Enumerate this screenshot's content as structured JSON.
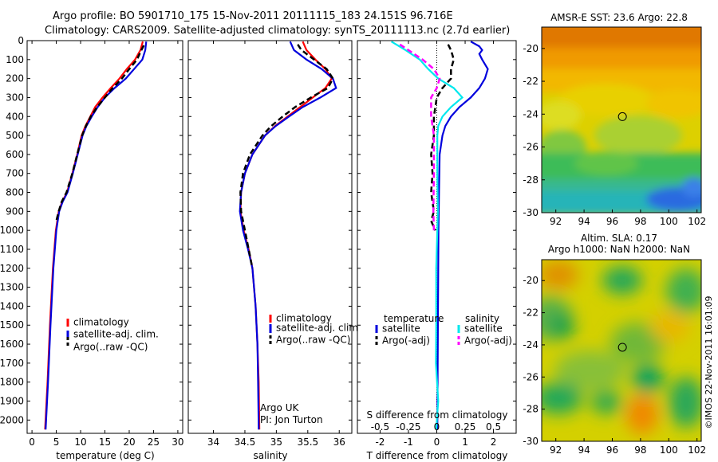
{
  "header": {
    "line1": "Argo profile: BO 5901710_175 15-Nov-2011 20111115_183 24.151S 96.716E",
    "line2": "Climatology: CARS2009. Satellite-adjusted climatology: synTS_20111113.nc (2.7d earlier)"
  },
  "colors": {
    "climatology": "#ff0000",
    "satellite": "#0000dd",
    "argo": "#000000",
    "sat_salinity": "#00e8ee",
    "argo_salinity": "#ff00ff"
  },
  "chart_data": [
    {
      "type": "line",
      "name": "temperature-profile",
      "xlabel": "temperature (deg C)",
      "ylabel": "",
      "xlim": [
        -1,
        31
      ],
      "ylim": [
        2070,
        0
      ],
      "xticks": [
        0,
        5,
        10,
        15,
        20,
        25,
        30
      ],
      "yticks": [
        0,
        100,
        200,
        300,
        400,
        500,
        600,
        700,
        800,
        900,
        1000,
        1100,
        1200,
        1300,
        1400,
        1500,
        1600,
        1700,
        1800,
        1900,
        2000
      ],
      "legend": [
        "climatology",
        "satellite-adj. clim.",
        "Argo(..raw -QC)"
      ],
      "series": [
        {
          "name": "climatology",
          "color": "#ff0000",
          "points": [
            [
              22.8,
              5
            ],
            [
              22.3,
              50
            ],
            [
              21.2,
              100
            ],
            [
              19.5,
              150
            ],
            [
              18,
              200
            ],
            [
              16.2,
              250
            ],
            [
              14.5,
              300
            ],
            [
              13,
              350
            ],
            [
              12,
              400
            ],
            [
              11,
              450
            ],
            [
              10.2,
              500
            ],
            [
              9.3,
              600
            ],
            [
              8.3,
              700
            ],
            [
              7.2,
              800
            ],
            [
              6.2,
              850
            ],
            [
              5.5,
              900
            ],
            [
              4.9,
              1000
            ],
            [
              4.3,
              1200
            ],
            [
              3.7,
              1500
            ],
            [
              3.2,
              1800
            ],
            [
              2.7,
              2050
            ]
          ]
        },
        {
          "name": "satellite-adj. clim.",
          "color": "#0000dd",
          "points": [
            [
              23.5,
              5
            ],
            [
              23.3,
              50
            ],
            [
              22.7,
              100
            ],
            [
              21,
              150
            ],
            [
              19.3,
              200
            ],
            [
              17,
              250
            ],
            [
              15,
              300
            ],
            [
              13.5,
              350
            ],
            [
              12.3,
              400
            ],
            [
              11.2,
              450
            ],
            [
              10.4,
              500
            ],
            [
              9.4,
              600
            ],
            [
              8.4,
              700
            ],
            [
              7.3,
              800
            ],
            [
              6.3,
              850
            ],
            [
              5.6,
              900
            ],
            [
              5,
              1000
            ],
            [
              4.4,
              1200
            ],
            [
              3.8,
              1500
            ],
            [
              3.3,
              1800
            ],
            [
              2.8,
              2050
            ]
          ]
        },
        {
          "name": "Argo(..raw -QC)",
          "color": "#000000",
          "dashed": true,
          "points": [
            [
              23,
              25
            ],
            [
              22.5,
              50
            ],
            [
              21.6,
              100
            ],
            [
              20,
              150
            ],
            [
              18.5,
              200
            ],
            [
              16.6,
              250
            ],
            [
              15,
              300
            ],
            [
              13.4,
              350
            ],
            [
              12.1,
              400
            ],
            [
              11.1,
              450
            ],
            [
              10.3,
              500
            ],
            [
              9.3,
              600
            ],
            [
              8.3,
              700
            ],
            [
              7.1,
              800
            ],
            [
              6.1,
              850
            ],
            [
              5.5,
              900
            ],
            [
              5,
              950
            ]
          ]
        }
      ]
    },
    {
      "type": "line",
      "name": "salinity-profile",
      "xlabel": "salinity",
      "ylabel": "",
      "xlim": [
        33.6,
        36.2
      ],
      "ylim": [
        2070,
        0
      ],
      "xticks": [
        34,
        34.5,
        35,
        35.5,
        36
      ],
      "xticklabels": [
        "34",
        "34.5",
        "35",
        "35.5",
        "36"
      ],
      "legend": [
        "climatology",
        "satellite-adj. clim.",
        "Argo(..raw -QC)"
      ],
      "annotations": [
        "Argo UK",
        "PI: Jon Turton"
      ],
      "series": [
        {
          "name": "climatology",
          "color": "#ff0000",
          "points": [
            [
              35.42,
              5
            ],
            [
              35.48,
              50
            ],
            [
              35.62,
              100
            ],
            [
              35.78,
              150
            ],
            [
              35.88,
              200
            ],
            [
              35.78,
              250
            ],
            [
              35.58,
              300
            ],
            [
              35.38,
              350
            ],
            [
              35.18,
              400
            ],
            [
              34.98,
              450
            ],
            [
              34.82,
              500
            ],
            [
              34.62,
              600
            ],
            [
              34.5,
              700
            ],
            [
              34.44,
              800
            ],
            [
              34.43,
              900
            ],
            [
              34.48,
              1000
            ],
            [
              34.56,
              1100
            ],
            [
              34.62,
              1200
            ],
            [
              34.67,
              1400
            ],
            [
              34.7,
              1600
            ],
            [
              34.72,
              1800
            ],
            [
              34.73,
              2050
            ]
          ]
        },
        {
          "name": "satellite-adj. clim.",
          "color": "#0000dd",
          "points": [
            [
              35.22,
              5
            ],
            [
              35.28,
              50
            ],
            [
              35.48,
              100
            ],
            [
              35.72,
              150
            ],
            [
              35.9,
              200
            ],
            [
              35.95,
              250
            ],
            [
              35.7,
              300
            ],
            [
              35.42,
              350
            ],
            [
              35.2,
              400
            ],
            [
              34.99,
              450
            ],
            [
              34.82,
              500
            ],
            [
              34.62,
              600
            ],
            [
              34.5,
              700
            ],
            [
              34.44,
              800
            ],
            [
              34.42,
              900
            ],
            [
              34.47,
              1000
            ],
            [
              34.55,
              1100
            ],
            [
              34.62,
              1200
            ],
            [
              34.67,
              1400
            ],
            [
              34.7,
              1600
            ],
            [
              34.71,
              1800
            ],
            [
              34.72,
              2050
            ]
          ]
        },
        {
          "name": "Argo(..raw -QC)",
          "color": "#000000",
          "dashed": true,
          "points": [
            [
              35.34,
              20
            ],
            [
              35.4,
              50
            ],
            [
              35.6,
              100
            ],
            [
              35.8,
              150
            ],
            [
              35.9,
              200
            ],
            [
              35.82,
              250
            ],
            [
              35.55,
              300
            ],
            [
              35.3,
              350
            ],
            [
              35.1,
              400
            ],
            [
              34.92,
              450
            ],
            [
              34.78,
              500
            ],
            [
              34.58,
              600
            ],
            [
              34.47,
              700
            ],
            [
              34.43,
              800
            ],
            [
              34.44,
              900
            ],
            [
              34.5,
              1000
            ],
            [
              34.56,
              1100
            ],
            [
              34.62,
              1200
            ]
          ]
        }
      ]
    },
    {
      "type": "line",
      "name": "difference-profile",
      "xlabel": "T difference from climatology",
      "xlabel_top": "S difference from climatology",
      "xlim": [
        -2.8,
        2.8
      ],
      "ylim": [
        2070,
        0
      ],
      "xticks": [
        -2,
        -1,
        0,
        1,
        2
      ],
      "xticklabels": [
        "-2",
        "-1",
        "0",
        "1",
        "2"
      ],
      "sticklabels": [
        "-0.5",
        "-0.25",
        "0",
        "0.25",
        "0.5"
      ],
      "legend_groups": [
        {
          "title": "temperature",
          "items": [
            "satellite",
            "Argo(-adj)"
          ]
        },
        {
          "title": "salinity",
          "items": [
            "satellite",
            "Argo(-adj)"
          ]
        }
      ],
      "series": [
        {
          "name": "satellite",
          "group": "temperature",
          "color": "#0000dd",
          "points": [
            [
              1.2,
              5
            ],
            [
              1.5,
              30
            ],
            [
              1.6,
              50
            ],
            [
              1.5,
              70
            ],
            [
              1.6,
              100
            ],
            [
              1.8,
              150
            ],
            [
              1.7,
              200
            ],
            [
              1.5,
              250
            ],
            [
              1.2,
              300
            ],
            [
              0.8,
              350
            ],
            [
              0.5,
              400
            ],
            [
              0.3,
              450
            ],
            [
              0.2,
              500
            ],
            [
              0.1,
              600
            ],
            [
              0.08,
              800
            ],
            [
              0.06,
              1000
            ],
            [
              0.04,
              1500
            ],
            [
              0.02,
              2050
            ]
          ]
        },
        {
          "name": "Argo(-adj)",
          "group": "temperature",
          "color": "#000000",
          "dashed": true,
          "points": [
            [
              0.4,
              20
            ],
            [
              0.5,
              50
            ],
            [
              0.6,
              100
            ],
            [
              0.5,
              150
            ],
            [
              0.5,
              200
            ],
            [
              0.2,
              250
            ],
            [
              0,
              300
            ],
            [
              -0.1,
              400
            ],
            [
              -0.1,
              500
            ],
            [
              -0.2,
              600
            ],
            [
              -0.15,
              700
            ],
            [
              -0.2,
              800
            ],
            [
              -0.1,
              900
            ],
            [
              -0.2,
              950
            ],
            [
              -0.05,
              1000
            ]
          ]
        },
        {
          "name": "satellite",
          "group": "salinity",
          "color": "#00e8ee",
          "points": [
            [
              -1.6,
              5
            ],
            [
              -1.1,
              50
            ],
            [
              -0.6,
              100
            ],
            [
              -0.3,
              150
            ],
            [
              0.05,
              200
            ],
            [
              0.6,
              250
            ],
            [
              0.9,
              300
            ],
            [
              0.5,
              350
            ],
            [
              0.2,
              400
            ],
            [
              0.05,
              450
            ],
            [
              0.02,
              500
            ],
            [
              0.02,
              700
            ],
            [
              0.04,
              900
            ],
            [
              -0.02,
              1200
            ],
            [
              -0.02,
              1500
            ],
            [
              -0.03,
              1700
            ],
            [
              0.05,
              1900
            ],
            [
              -0.02,
              2050
            ]
          ]
        },
        {
          "name": "Argo(-adj)",
          "group": "salinity",
          "color": "#ff00ff",
          "dashed": true,
          "points": [
            [
              -1.3,
              20
            ],
            [
              -1,
              50
            ],
            [
              -0.5,
              100
            ],
            [
              -0.1,
              150
            ],
            [
              0.1,
              200
            ],
            [
              0,
              250
            ],
            [
              -0.2,
              300
            ],
            [
              -0.2,
              400
            ],
            [
              -0.1,
              500
            ],
            [
              -0.1,
              700
            ],
            [
              -0.12,
              900
            ],
            [
              -0.1,
              1000
            ]
          ]
        }
      ]
    },
    {
      "type": "heatmap",
      "name": "sst-map",
      "title": "AMSR-E SST: 23.6  Argo: 22.8",
      "xlim": [
        91,
        102.3
      ],
      "ylim": [
        -30,
        -18.7
      ],
      "xticks": [
        92,
        94,
        96,
        98,
        100,
        102
      ],
      "yticks": [
        -20,
        -22,
        -24,
        -26,
        -28,
        -30
      ],
      "marker": [
        96.716,
        -24.151
      ]
    },
    {
      "type": "heatmap",
      "name": "sla-map",
      "title_line1": "Altim. SLA: 0.17",
      "title_line2": "Argo h1000: NaN h2000: NaN",
      "xlim": [
        91,
        102.3
      ],
      "ylim": [
        -30,
        -18.7
      ],
      "xticks": [
        92,
        94,
        96,
        98,
        100,
        102
      ],
      "yticks": [
        -20,
        -22,
        -24,
        -26,
        -28,
        -30
      ],
      "marker": [
        96.716,
        -24.151
      ]
    }
  ],
  "stamp": "©IMOS 22-Nov-2011 16:01:09"
}
